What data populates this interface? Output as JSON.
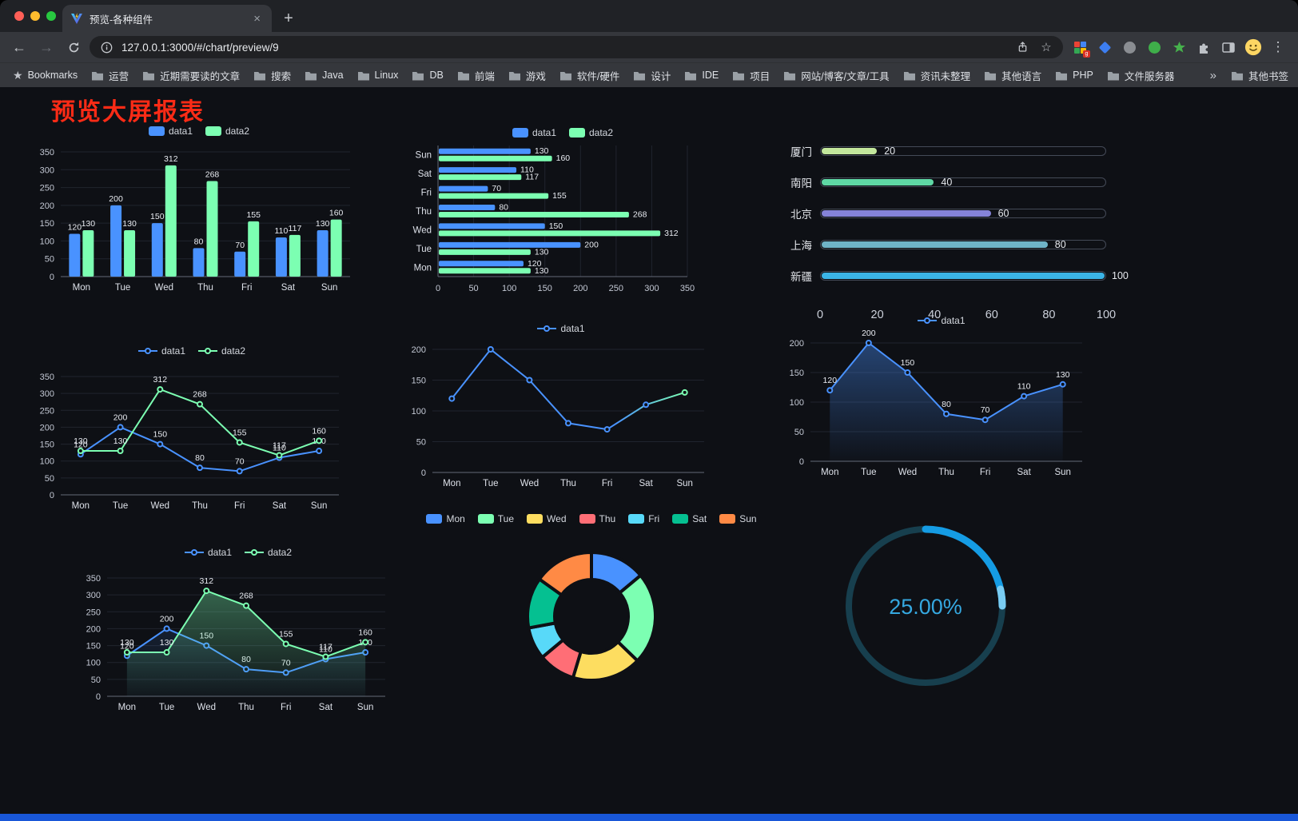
{
  "browser": {
    "tab_title": "预览-各种组件",
    "url": "127.0.0.1:3000/#/chart/preview/9",
    "bookmarks_label": "Bookmarks",
    "bookmarks": [
      "运营",
      "近期需要读的文章",
      "搜索",
      "Java",
      "Linux",
      "DB",
      "前端",
      "游戏",
      "软件/硬件",
      "设计",
      "IDE",
      "项目",
      "网站/博客/文章/工具",
      "资讯未整理",
      "其他语言",
      "PHP",
      "文件服务器"
    ],
    "overflow": "»",
    "other_bookmarks": "其他书签"
  },
  "page": {
    "title": "预览大屏报表"
  },
  "chart_data": [
    {
      "id": "grouped-bar",
      "type": "bar",
      "categories": [
        "Mon",
        "Tue",
        "Wed",
        "Thu",
        "Fri",
        "Sat",
        "Sun"
      ],
      "series": [
        {
          "name": "data1",
          "color": "#4992ff",
          "values": [
            120,
            200,
            150,
            80,
            70,
            110,
            130
          ],
          "labels": true
        },
        {
          "name": "data2",
          "color": "#7cffb2",
          "values": [
            130,
            130,
            312,
            268,
            155,
            117,
            160
          ],
          "labels": true
        }
      ],
      "ylim": [
        0,
        350
      ],
      "ytick": 50
    },
    {
      "id": "horizontal-bar",
      "type": "bar",
      "orientation": "horizontal",
      "categories": [
        "Mon",
        "Tue",
        "Wed",
        "Thu",
        "Fri",
        "Sat",
        "Sun"
      ],
      "series": [
        {
          "name": "data1",
          "color": "#4992ff",
          "values": [
            120,
            200,
            150,
            80,
            70,
            110,
            130
          ],
          "labels": true
        },
        {
          "name": "data2",
          "color": "#7cffb2",
          "values": [
            130,
            130,
            312,
            268,
            155,
            117,
            160
          ],
          "labels": true
        }
      ],
      "xlim": [
        0,
        350
      ],
      "xtick": 50
    },
    {
      "id": "capsule-bars",
      "type": "bar",
      "variant": "capsule",
      "categories": [
        "厦门",
        "南阳",
        "北京",
        "上海",
        "新疆"
      ],
      "values": [
        20,
        40,
        60,
        80,
        100
      ],
      "colors": [
        "#c3e79c",
        "#5fd8a5",
        "#8583d8",
        "#6fb3c8",
        "#3bb4e7"
      ],
      "xlim": [
        0,
        100
      ],
      "xticks": [
        0,
        20,
        40,
        60,
        80,
        100
      ]
    },
    {
      "id": "line-two-series",
      "type": "line",
      "categories": [
        "Mon",
        "Tue",
        "Wed",
        "Thu",
        "Fri",
        "Sat",
        "Sun"
      ],
      "series": [
        {
          "name": "data1",
          "color": "#4992ff",
          "values": [
            120,
            200,
            150,
            80,
            70,
            110,
            130
          ],
          "labels": true
        },
        {
          "name": "data2",
          "color": "#7cffb2",
          "values": [
            130,
            130,
            312,
            268,
            155,
            117,
            160
          ],
          "labels": true
        }
      ],
      "ylim": [
        0,
        350
      ],
      "ytick": 50
    },
    {
      "id": "line-gradient",
      "type": "line",
      "categories": [
        "Mon",
        "Tue",
        "Wed",
        "Thu",
        "Fri",
        "Sat",
        "Sun"
      ],
      "series": [
        {
          "name": "data1",
          "color": "#4992ff",
          "endColor": "#7cffb2",
          "values": [
            120,
            200,
            150,
            80,
            70,
            110,
            130
          ],
          "labels": false
        }
      ],
      "ylim": [
        0,
        200
      ],
      "ytick": 50
    },
    {
      "id": "line-area",
      "type": "line",
      "categories": [
        "Mon",
        "Tue",
        "Wed",
        "Thu",
        "Fri",
        "Sat",
        "Sun"
      ],
      "series": [
        {
          "name": "data1",
          "color": "#4992ff",
          "values": [
            120,
            200,
            150,
            80,
            70,
            110,
            130
          ],
          "labels": true,
          "area": true,
          "areaAlpha": 0.4
        }
      ],
      "ylim": [
        0,
        200
      ],
      "ytick": 50
    },
    {
      "id": "line-two-area",
      "type": "line",
      "categories": [
        "Mon",
        "Tue",
        "Wed",
        "Thu",
        "Fri",
        "Sat",
        "Sun"
      ],
      "series": [
        {
          "name": "data1",
          "color": "#4992ff",
          "values": [
            120,
            200,
            150,
            80,
            70,
            110,
            130
          ],
          "labels": true,
          "area": true,
          "areaAlpha": 0.12
        },
        {
          "name": "data2",
          "color": "#7cffb2",
          "values": [
            130,
            130,
            312,
            268,
            155,
            117,
            160
          ],
          "labels": true,
          "area": true,
          "areaAlpha": 0.35
        }
      ],
      "ylim": [
        0,
        350
      ],
      "ytick": 50
    },
    {
      "id": "donut",
      "type": "pie",
      "labels": [
        "Mon",
        "Tue",
        "Wed",
        "Thu",
        "Fri",
        "Sat",
        "Sun"
      ],
      "values": [
        120,
        200,
        150,
        80,
        70,
        110,
        130
      ],
      "colors": [
        "#4992ff",
        "#7cffb2",
        "#fddd60",
        "#ff6e76",
        "#58d9f9",
        "#05c091",
        "#ff8a45"
      ]
    },
    {
      "id": "progress-ring",
      "type": "gauge",
      "value": 25,
      "label": "25.00%",
      "color": "#159ce4",
      "tail_color": "#79ccf2",
      "track": "#173f4e",
      "text_color": "#35a8e0"
    }
  ]
}
